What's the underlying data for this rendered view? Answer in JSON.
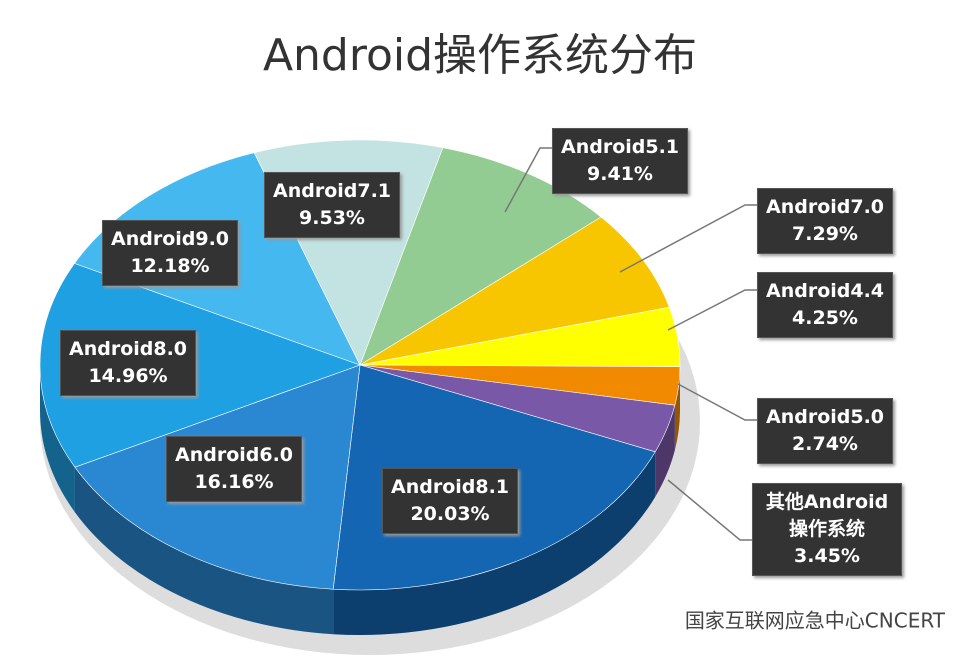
{
  "chart_data": {
    "type": "pie",
    "title": "Android操作系统分布",
    "categories": [
      "Android5.1",
      "Android7.0",
      "Android4.4",
      "Android5.0",
      "其他Android操作系统",
      "Android8.1",
      "Android6.0",
      "Android8.0",
      "Android9.0",
      "Android7.1"
    ],
    "values": [
      9.41,
      7.29,
      4.25,
      2.74,
      3.45,
      20.03,
      16.16,
      14.96,
      12.18,
      9.53
    ],
    "value_labels": [
      "9.41%",
      "7.29%",
      "4.25%",
      "2.74%",
      "3.45%",
      "20.03%",
      "16.16%",
      "14.96%",
      "12.18%",
      "9.53%"
    ],
    "colors": [
      "#93cc92",
      "#f7c600",
      "#ffff00",
      "#f28a00",
      "#7a58a8",
      "#1466b2",
      "#2a88d2",
      "#1ea0e2",
      "#45b9ef",
      "#c3e2e2"
    ],
    "watermark": "国家互联网应急中心CNCERT"
  }
}
